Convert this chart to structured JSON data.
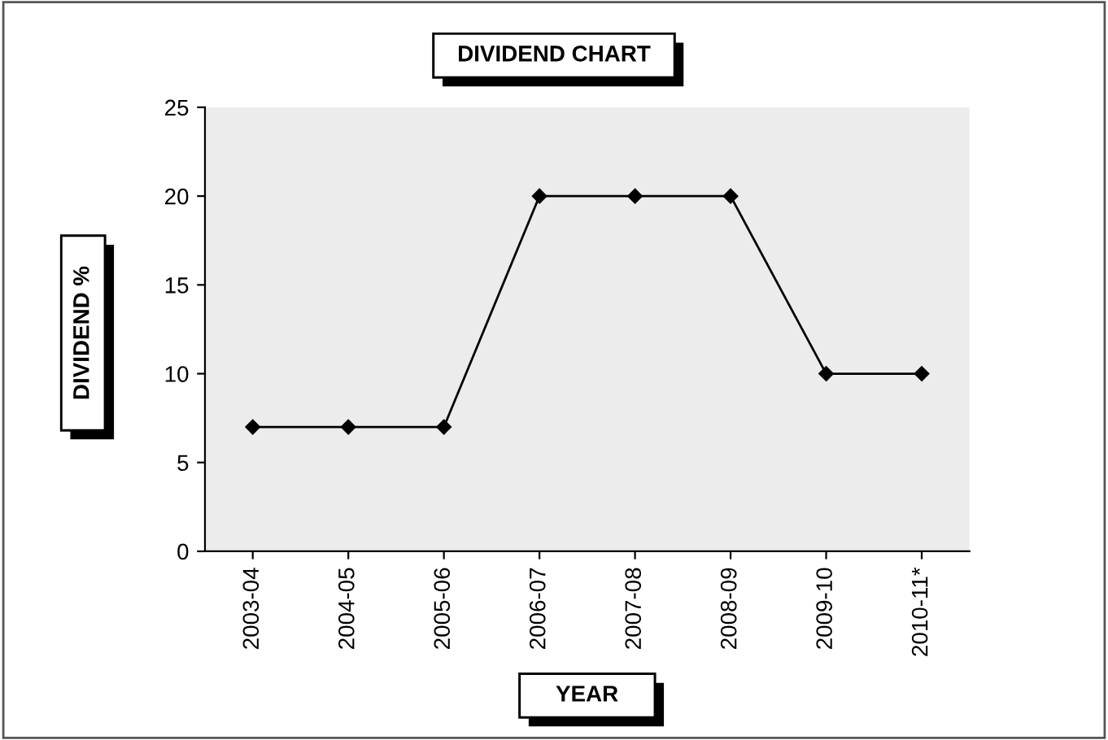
{
  "chart_data": {
    "type": "line",
    "title": "DIVIDEND CHART",
    "xlabel": "YEAR",
    "ylabel": "DIVIDEND %",
    "categories": [
      "2003-04",
      "2004-05",
      "2005-06",
      "2006-07",
      "2007-08",
      "2008-09",
      "2009-10",
      "2010-11*"
    ],
    "series": [
      {
        "color": "#000000",
        "values": [
          7,
          7,
          7,
          20,
          20,
          20,
          10,
          10
        ]
      }
    ],
    "ylim": [
      0,
      25
    ],
    "yticks": [
      0,
      5,
      10,
      15,
      20,
      25
    ],
    "grid": false,
    "marker": "diamond",
    "line_style": "solid"
  }
}
